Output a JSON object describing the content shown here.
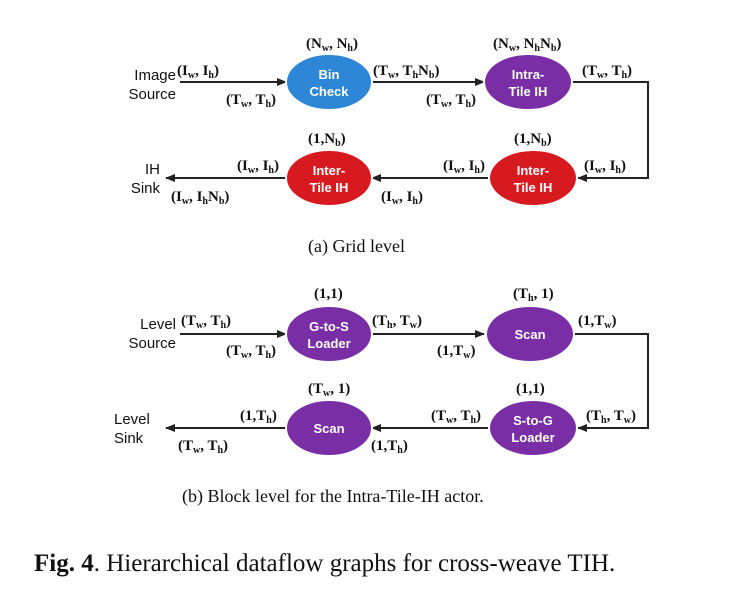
{
  "grid": {
    "sources": {
      "source_line1": "Image",
      "source_line2": "Source",
      "sink_line1": "IH",
      "sink_line2": "Sink"
    },
    "nodes": {
      "bin_check": {
        "line1": "Bin",
        "line2": "Check",
        "rate": "(N<sub>w</sub>, N<sub>h</sub>)",
        "color": "#2e86d6"
      },
      "intra_tile": {
        "line1": "Intra-",
        "line2": "Tile IH",
        "rate": "(N<sub>w</sub>, N<sub>h</sub>N<sub>b</sub>)",
        "color": "#7a2ea6"
      },
      "inter_tile_right": {
        "line1": "Inter-",
        "line2": "Tile IH",
        "rate": "(1,N<sub>b</sub>)",
        "color": "#d71a20"
      },
      "inter_tile_left": {
        "line1": "Inter-",
        "line2": "Tile IH",
        "rate": "(1,N<sub>b</sub>)",
        "color": "#d71a20"
      }
    },
    "labels": {
      "src_out": "(I<sub>w</sub>, I<sub>h</sub>)",
      "bin_in": "(T<sub>w</sub>, T<sub>h</sub>)",
      "bin_out": "(T<sub>w</sub>, T<sub>h</sub>N<sub>b</sub>)",
      "intra_in": "(T<sub>w</sub>, T<sub>h</sub>)",
      "intra_out": "(T<sub>w</sub>, T<sub>h</sub>)",
      "inter_r_in": "(I<sub>w</sub>, I<sub>h</sub>)",
      "inter_r_out": "(I<sub>w</sub>, I<sub>h</sub>)",
      "inter_l_in": "(I<sub>w</sub>, I<sub>h</sub>)",
      "inter_l_out": "(I<sub>w</sub>, I<sub>h</sub>)",
      "sink_in": "(I<sub>w</sub>, I<sub>h</sub>N<sub>b</sub>)"
    },
    "caption": "(a)  Grid level"
  },
  "block": {
    "sources": {
      "source_line1": "Level",
      "source_line2": "Source",
      "sink_line1": "Level",
      "sink_line2": "Sink"
    },
    "nodes": {
      "gtos": {
        "line1": "G-to-S",
        "line2": "Loader",
        "rate": "(1,1)",
        "color": "#7a2ea6"
      },
      "scan_right": {
        "line1": "Scan",
        "line2": "",
        "rate": "(T<sub>h</sub>, 1)",
        "color": "#7a2ea6"
      },
      "stog": {
        "line1": "S-to-G",
        "line2": "Loader",
        "rate": "(1,1)",
        "color": "#7a2ea6"
      },
      "scan_left": {
        "line1": "Scan",
        "line2": "",
        "rate": "(T<sub>w</sub>, 1)",
        "color": "#7a2ea6"
      }
    },
    "labels": {
      "src_out": "(T<sub>w</sub>, T<sub>h</sub>)",
      "gtos_in": "(T<sub>w</sub>, T<sub>h</sub>)",
      "gtos_out": "(T<sub>h</sub>, T<sub>w</sub>)",
      "scan_r_in": "(1,T<sub>w</sub>)",
      "scan_r_out": "(1,T<sub>w</sub>)",
      "stog_in": "(T<sub>h</sub>, T<sub>w</sub>)",
      "stog_out": "(T<sub>w</sub>, T<sub>h</sub>)",
      "scan_l_in": "(1,T<sub>h</sub>)",
      "scan_l_out": "(1,T<sub>h</sub>)",
      "sink_in": "(T<sub>w</sub>, T<sub>h</sub>)"
    },
    "caption": "(b)  Block level for the Intra-Tile-IH actor."
  },
  "figure": {
    "caption_bold": "Fig. 4",
    "caption_rest": ". Hierarchical dataflow graphs for cross-weave TIH."
  }
}
